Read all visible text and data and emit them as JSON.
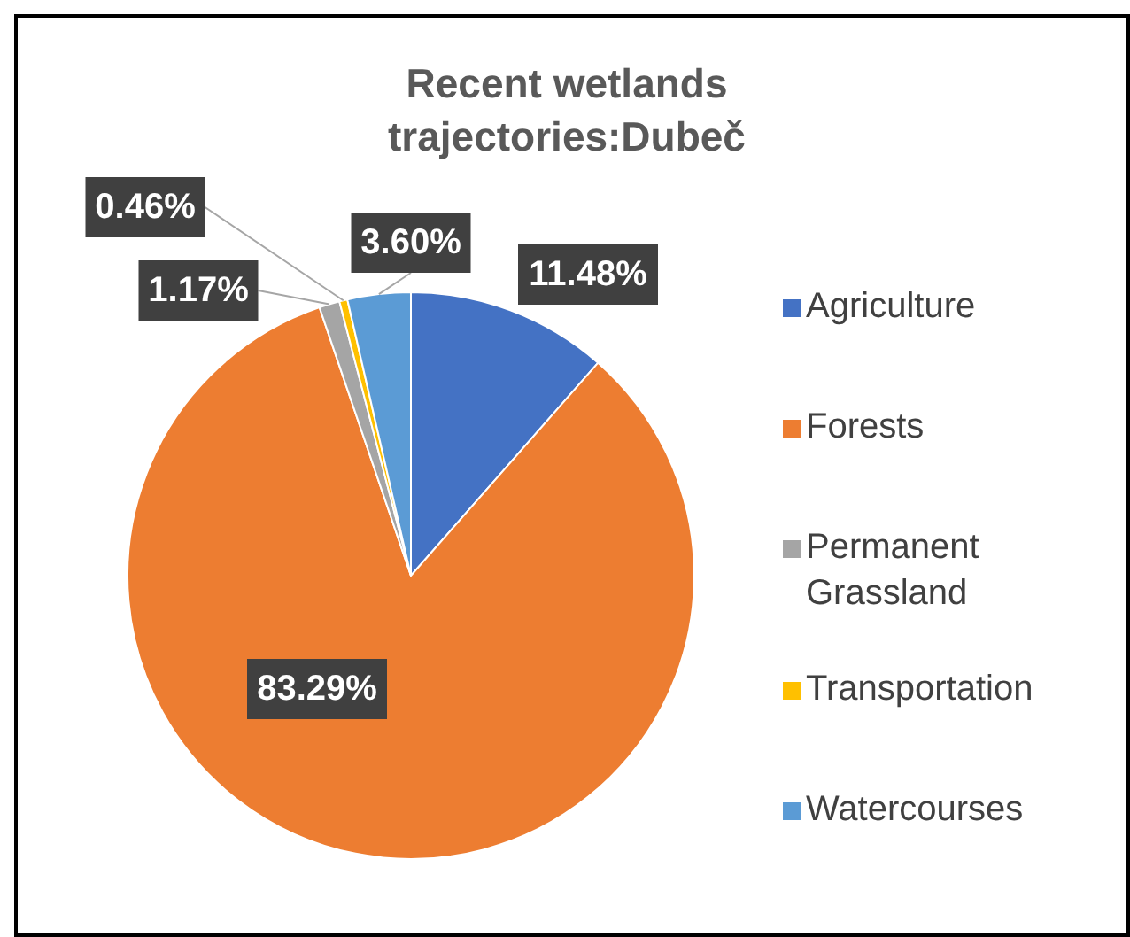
{
  "chart_data": {
    "type": "pie",
    "title": "Recent wetlands trajectories:Dubeč",
    "categories": [
      "Agriculture",
      "Forests",
      "Permanent Grassland",
      "Transportation",
      "Watercourses"
    ],
    "values": [
      11.48,
      83.29,
      1.17,
      0.46,
      3.6
    ],
    "colors": [
      "#4472c4",
      "#ed7d31",
      "#a5a5a5",
      "#ffc000",
      "#5b9bd5"
    ],
    "value_labels": [
      "11.48%",
      "83.29%",
      "1.17%",
      "0.46%",
      "3.60%"
    ],
    "legend": "right"
  }
}
